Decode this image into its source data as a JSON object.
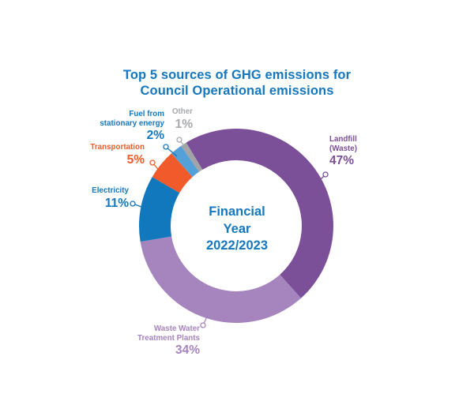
{
  "title": {
    "line1": "Top 5 sources of GHG emissions for",
    "line2": "Council Operational emissions"
  },
  "center_label": {
    "line1": "Financial",
    "line2": "Year",
    "line3": "2022/2023"
  },
  "callouts": {
    "landfill": {
      "line1": "Landfill",
      "line2": "(Waste)",
      "pct": "47%",
      "color": "#7C4F99"
    },
    "wastewater": {
      "line1": "Waste Water",
      "line2": "Treatment Plants",
      "pct": "34%",
      "color": "#A684BE"
    },
    "electricity": {
      "line1": "Electricity",
      "pct": "11%",
      "color": "#1577BE"
    },
    "transportation": {
      "line1": "Transportation",
      "pct": "5%",
      "color": "#F15B2B"
    },
    "fuel": {
      "line1": "Fuel from",
      "line2": "stationary energy",
      "pct": "2%",
      "color": "#1577BE"
    },
    "other": {
      "line1": "Other",
      "pct": "1%",
      "color": "#A7A9AC"
    }
  },
  "colors": {
    "title_text": "#1577BE",
    "background": "#FFFFFF"
  },
  "chart_data": {
    "type": "pie",
    "subtype": "donut",
    "title": "Top 5 sources of GHG emissions for Council Operational emissions",
    "center_label": "Financial Year 2022/2023",
    "start_angle_deg": -31,
    "direction": "clockwise",
    "slices": [
      {
        "label": "Landfill (Waste)",
        "value": 47,
        "unit": "%",
        "color": "#7C4F99"
      },
      {
        "label": "Waste Water Treatment Plants",
        "value": 34,
        "unit": "%",
        "color": "#A684BE"
      },
      {
        "label": "Electricity",
        "value": 11,
        "unit": "%",
        "color": "#1178BE"
      },
      {
        "label": "Transportation",
        "value": 5,
        "unit": "%",
        "color": "#F15B2B"
      },
      {
        "label": "Fuel from stationary energy",
        "value": 2,
        "unit": "%",
        "color": "#54A0D8"
      },
      {
        "label": "Other",
        "value": 1,
        "unit": "%",
        "color": "#A2A4A7"
      }
    ]
  }
}
